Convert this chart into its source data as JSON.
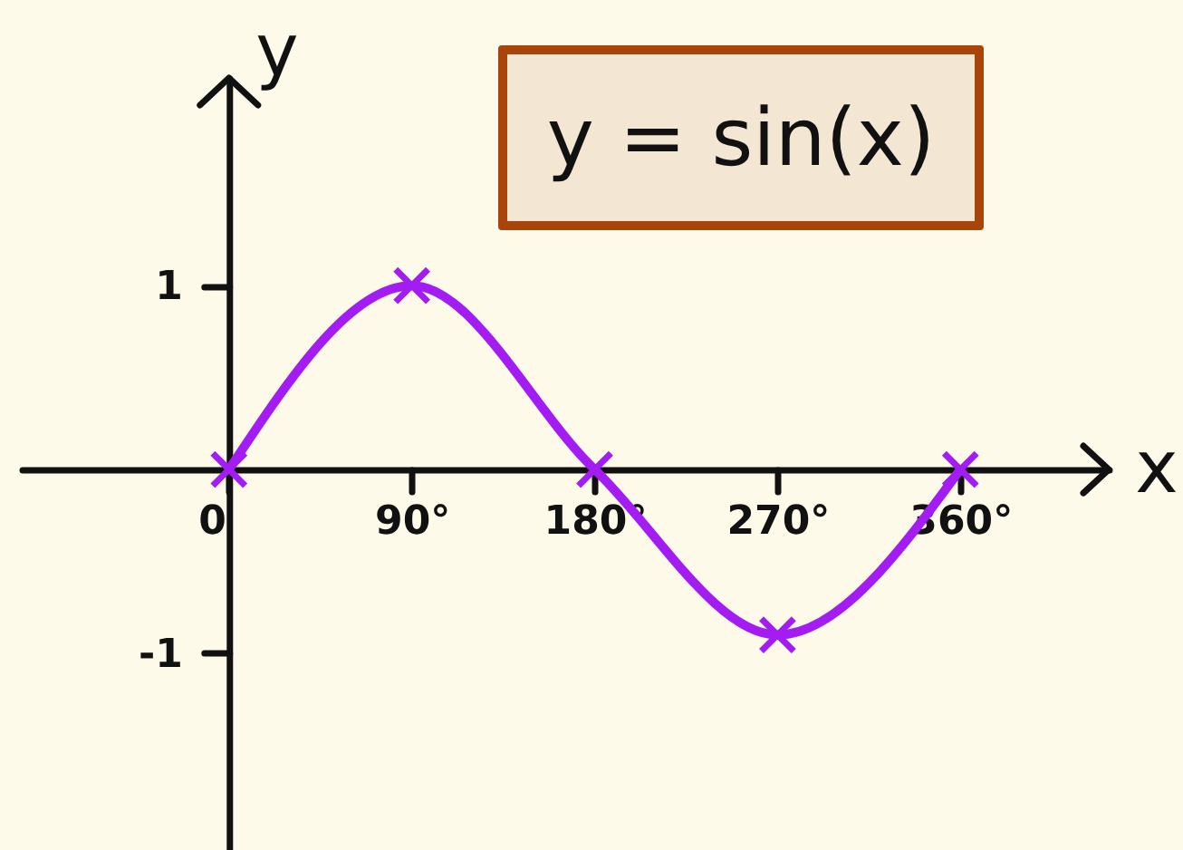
{
  "chart_data": {
    "type": "line",
    "title": "y = sin(x)",
    "xlabel": "x",
    "ylabel": "y",
    "x": [
      0,
      90,
      180,
      270,
      360
    ],
    "series": [
      {
        "color": "#a31cf2",
        "values": [
          0,
          1,
          0,
          -0.9,
          0
        ]
      }
    ],
    "marker": "cross",
    "xlim": [
      -102,
      433
    ],
    "ylim": [
      -2.07,
      2.13
    ],
    "xticks": [
      0,
      {
        "value": 90,
        "label": "90°"
      },
      {
        "value": 180,
        "label": "180°"
      },
      {
        "value": 270,
        "label": "270°"
      },
      {
        "value": 360,
        "label": "360°"
      }
    ],
    "yticks": [
      -1,
      1
    ]
  }
}
